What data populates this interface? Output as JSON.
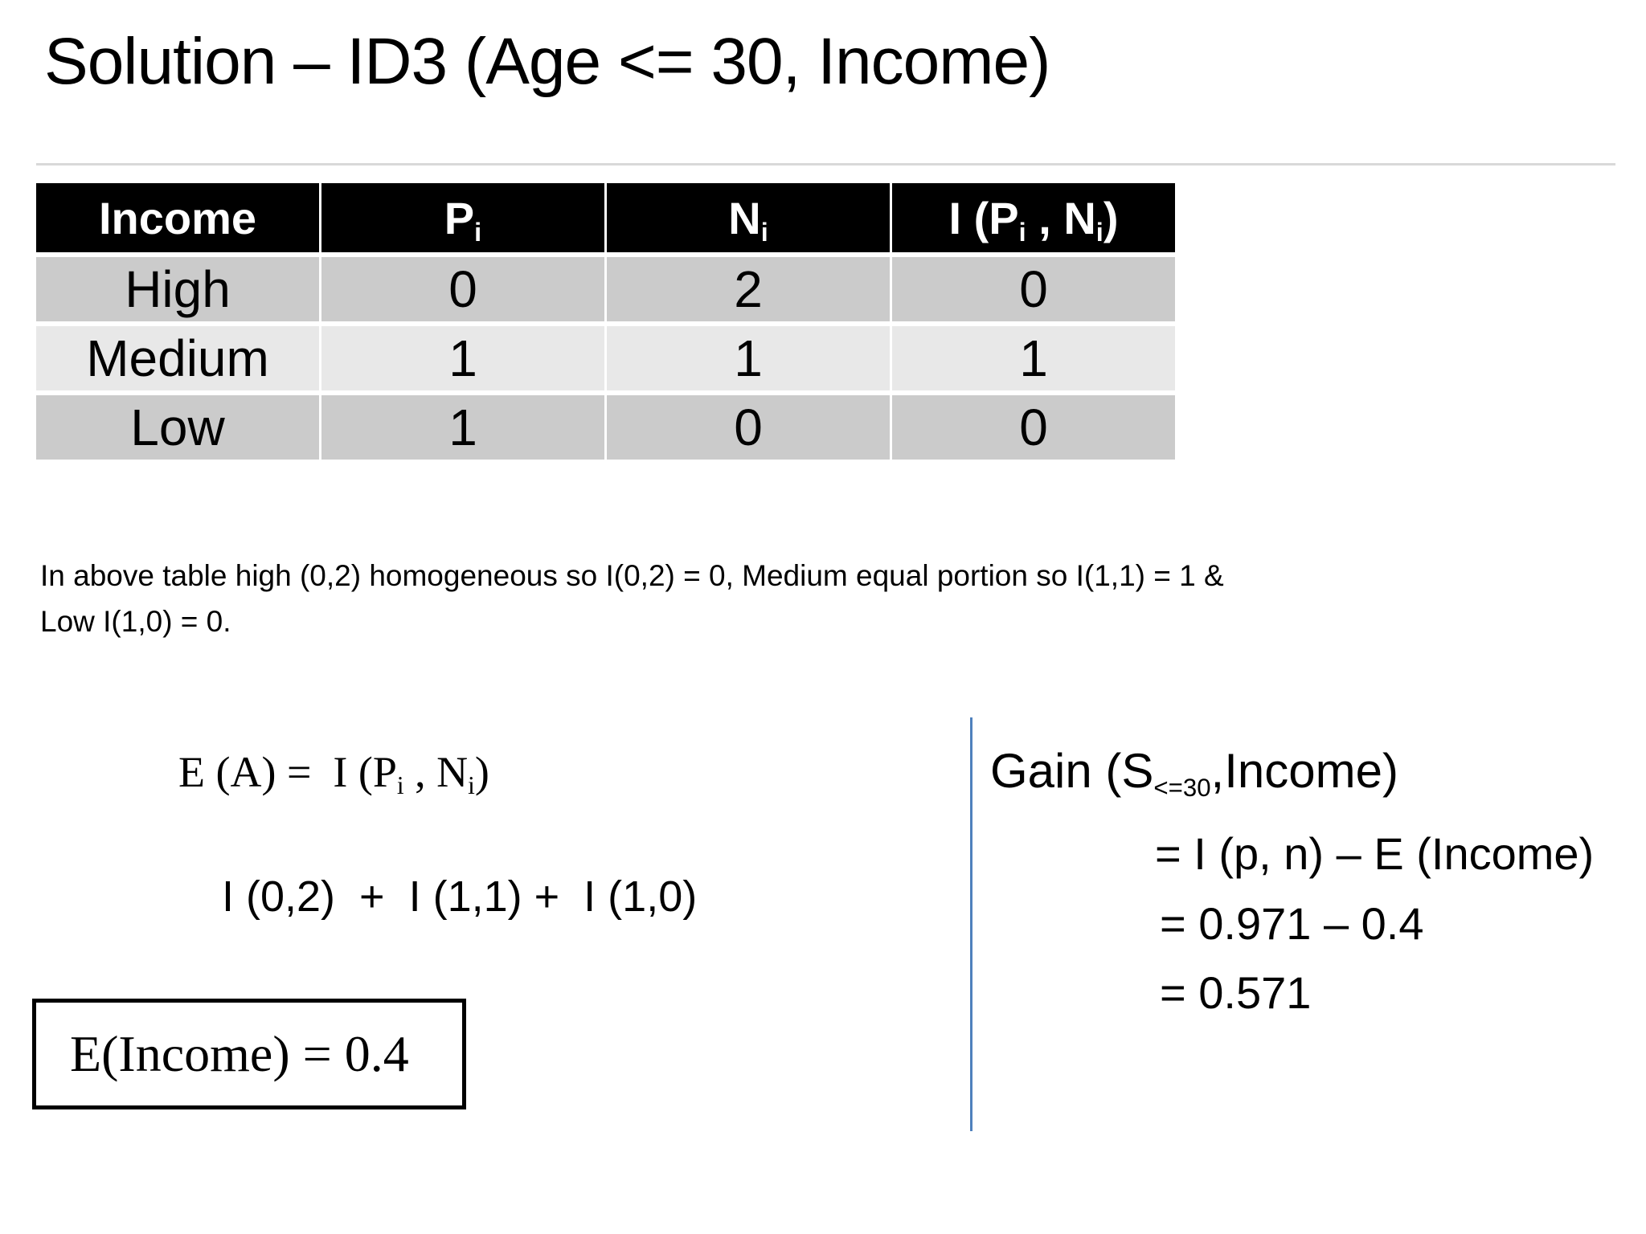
{
  "slide_title": "Solution – ID3 (Age <= 30, Income)",
  "table": {
    "header": {
      "col1": "Income",
      "col2_base": "P",
      "col2_sub": "i",
      "col3_base": "N",
      "col3_sub": "i",
      "col4_p1": "I (P",
      "col4_s1": "i",
      "col4_p2": " , N",
      "col4_s2": "i",
      "col4_p3": ")"
    },
    "rows": [
      {
        "income": "High",
        "p": "0",
        "n": "2",
        "i": "0"
      },
      {
        "income": "Medium",
        "p": "1",
        "n": "1",
        "i": "1"
      },
      {
        "income": "Low",
        "p": "1",
        "n": "0",
        "i": "0"
      }
    ]
  },
  "note_text": "In above table high (0,2) homogeneous so I(0,2) = 0, Medium equal portion so I(1,1) = 1 &\nLow I(1,0) = 0.",
  "entropy_formula": {
    "p1": "E (A) =  I (P",
    "s1": "i",
    "p2": " , N",
    "s2": "i",
    "p3": ")"
  },
  "sum_formula": "I (0,2)  +  I (1,1) +  I (1,0)",
  "result_box_text": "E(Income) = 0.4",
  "gain": {
    "head_p1": "Gain (S",
    "head_sub": "<=30",
    "head_p2": ",Income)",
    "line2": "= I (p, n) – E (Income)",
    "line3": "= 0.971 – 0.4",
    "line4": "= 0.571"
  },
  "colors": {
    "header_bg": "#000000",
    "header_text": "#ffffff",
    "row_dark": "#cbcbcb",
    "row_light": "#e8e8e8",
    "title_rule": "#d9d9d9",
    "accent_line": "#4f81bd"
  }
}
